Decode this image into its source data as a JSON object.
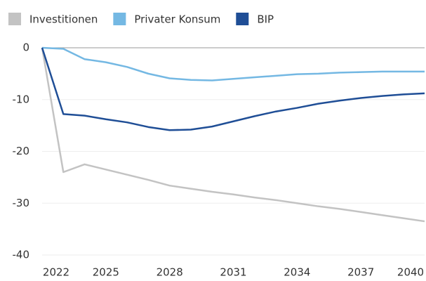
{
  "chart_data": {
    "type": "line",
    "x": [
      2022,
      2023,
      2024,
      2025,
      2026,
      2027,
      2028,
      2029,
      2030,
      2031,
      2032,
      2033,
      2034,
      2035,
      2036,
      2037,
      2038,
      2039,
      2040
    ],
    "series": [
      {
        "name": "Investitionen",
        "color": "#c3c3c3",
        "values": [
          0,
          -24,
          -22.5,
          -23.5,
          -24.5,
          -25.5,
          -26.6,
          -27.2,
          -27.8,
          -28.3,
          -28.9,
          -29.4,
          -30,
          -30.6,
          -31.1,
          -31.7,
          -32.3,
          -32.9,
          -33.5
        ]
      },
      {
        "name": "Privater Konsum",
        "color": "#74b8e3",
        "values": [
          0,
          -0.2,
          -2.2,
          -2.8,
          -3.7,
          -5,
          -5.9,
          -6.2,
          -6.3,
          -6,
          -5.7,
          -5.4,
          -5.1,
          -5,
          -4.8,
          -4.7,
          -4.6,
          -4.6,
          -4.6
        ]
      },
      {
        "name": "BIP",
        "color": "#1f4e96",
        "values": [
          0,
          -12.8,
          -13.1,
          -13.8,
          -14.4,
          -15.3,
          -15.9,
          -15.8,
          -15.2,
          -14.2,
          -13.2,
          -12.3,
          -11.6,
          -10.8,
          -10.2,
          -9.7,
          -9.3,
          -9,
          -8.8
        ]
      }
    ],
    "xlim": [
      2022,
      2040
    ],
    "xticks": [
      2022,
      2025,
      2028,
      2031,
      2034,
      2037,
      2040
    ],
    "ylim": [
      -40,
      0
    ],
    "yticks": [
      0,
      -10,
      -20,
      -30,
      -40
    ],
    "grid": true
  }
}
